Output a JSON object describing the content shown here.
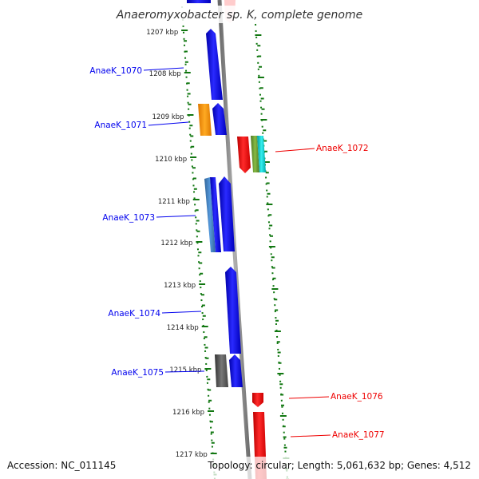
{
  "title": "Anaeromyxobacter sp. K, complete genome",
  "footer": {
    "accession": "Accession: NC_011145",
    "summary": "Topology: circular; Length: 5,061,632 bp; Genes: 4,512"
  },
  "ticks": [
    {
      "label": "1207 kbp"
    },
    {
      "label": "1208 kbp"
    },
    {
      "label": "1209 kbp"
    },
    {
      "label": "1210 kbp"
    },
    {
      "label": "1211 kbp"
    },
    {
      "label": "1212 kbp"
    },
    {
      "label": "1213 kbp"
    },
    {
      "label": "1214 kbp"
    },
    {
      "label": "1215 kbp"
    },
    {
      "label": "1216 kbp"
    },
    {
      "label": "1217 kbp"
    }
  ],
  "gene_labels": [
    {
      "text": "AnaeK_1070",
      "strand": "minus"
    },
    {
      "text": "AnaeK_1071",
      "strand": "minus"
    },
    {
      "text": "AnaeK_1072",
      "strand": "plus"
    },
    {
      "text": "AnaeK_1073",
      "strand": "minus"
    },
    {
      "text": "AnaeK_1074",
      "strand": "minus"
    },
    {
      "text": "AnaeK_1075",
      "strand": "minus"
    },
    {
      "text": "AnaeK_1076",
      "strand": "plus"
    },
    {
      "text": "AnaeK_1077",
      "strand": "plus"
    }
  ],
  "colors": {
    "minus_strand": "#0000ee",
    "plus_strand": "#ee0000",
    "backbone": "#888888",
    "ticks": "#117711",
    "orange_gene": "#ff9900",
    "steel_gene": "#4488cc",
    "gray_gene": "#555555",
    "olive_gene": "#669933",
    "cyan_gene": "#11cccc",
    "pink_gene": "#ffcccc"
  }
}
